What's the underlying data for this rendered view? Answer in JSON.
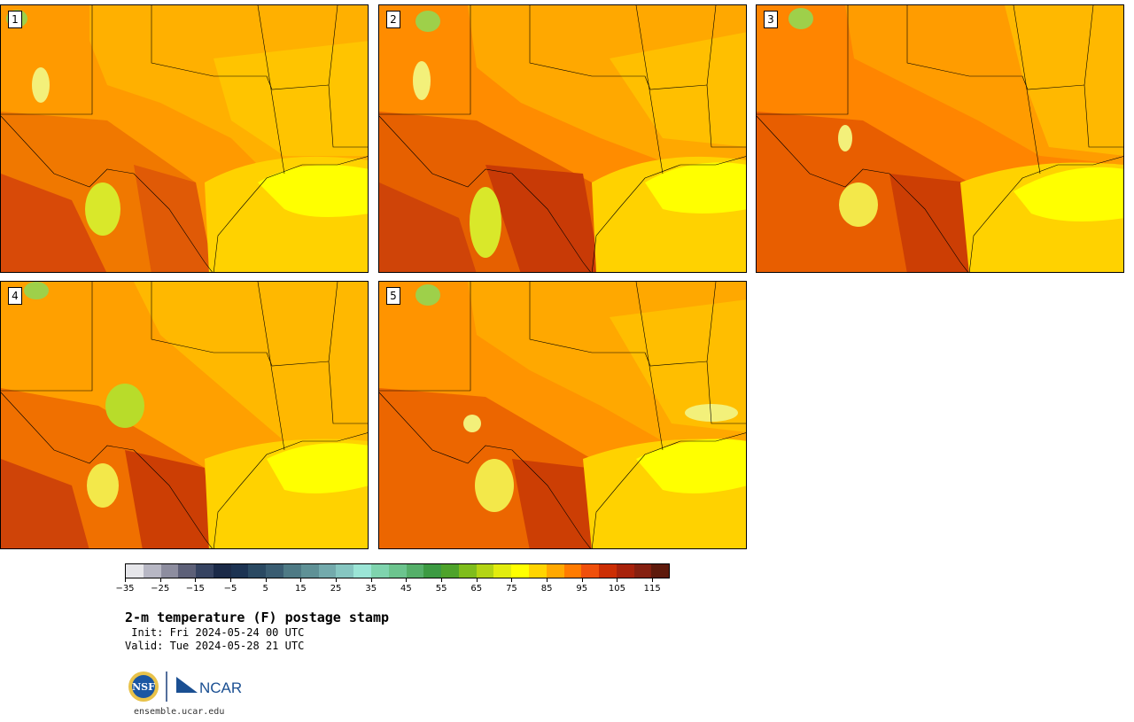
{
  "panels": [
    {
      "label": "1"
    },
    {
      "label": "2"
    },
    {
      "label": "3"
    },
    {
      "label": "4"
    },
    {
      "label": "5"
    }
  ],
  "colorbar": {
    "colors": [
      "#e6e6ea",
      "#b7b7c4",
      "#8d8d9f",
      "#5d6078",
      "#364361",
      "#1b2a48",
      "#1c3352",
      "#2a4962",
      "#3a5d72",
      "#4e7a85",
      "#5f9196",
      "#73aaac",
      "#86c6c1",
      "#9be5d6",
      "#7fd4ae",
      "#6cc48e",
      "#55af69",
      "#3c9a42",
      "#4ea32b",
      "#7fbd1c",
      "#b3d414",
      "#e2ec0e",
      "#ffff00",
      "#ffd400",
      "#ffa800",
      "#ff7b00",
      "#f0500c",
      "#cc2e04",
      "#a8220b",
      "#852010",
      "#5e1a0c"
    ],
    "tick_labels": [
      "-35",
      "-25",
      "-15",
      "-5",
      "5",
      "15",
      "25",
      "35",
      "45",
      "55",
      "65",
      "75",
      "85",
      "95",
      "105",
      "115"
    ]
  },
  "title": "2-m temperature (F) postage stamp",
  "init_line": " Init: Fri 2024-05-24 00 UTC",
  "valid_line": "Valid: Tue 2024-05-28 21 UTC",
  "logos": {
    "nsf": "NSF",
    "ncar": "NCAR"
  },
  "url": "ensemble.ucar.edu"
}
